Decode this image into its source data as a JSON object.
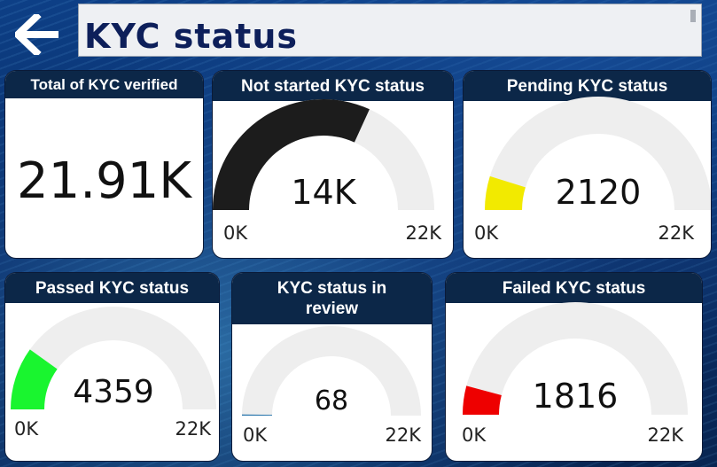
{
  "header": {
    "title": "KYC status",
    "back_icon": "arrow-left-icon"
  },
  "kpi": {
    "title": "Total of KYC verified",
    "value": "21.91K"
  },
  "gauges": [
    {
      "id": "not-started",
      "title": "Not started KYC status",
      "value": 14000,
      "value_label": "14K",
      "min_label": "0K",
      "max_label": "22K",
      "max": 22000,
      "color": "#1c1c1c"
    },
    {
      "id": "pending",
      "title": "Pending KYC status",
      "value": 2120,
      "value_label": "2120",
      "min_label": "0K",
      "max_label": "22K",
      "max": 22000,
      "color": "#f2ea00"
    },
    {
      "id": "passed",
      "title": "Passed KYC status",
      "value": 4359,
      "value_label": "4359",
      "min_label": "0K",
      "max_label": "22K",
      "max": 22000,
      "color": "#19f52f"
    },
    {
      "id": "in-review",
      "title": "KYC status in review",
      "value": 68,
      "value_label": "68",
      "min_label": "0K",
      "max_label": "22K",
      "max": 22000,
      "color": "#1f6fa8"
    },
    {
      "id": "failed",
      "title": "Failed KYC status",
      "value": 1816,
      "value_label": "1816",
      "min_label": "0K",
      "max_label": "22K",
      "max": 22000,
      "color": "#ee0000"
    }
  ]
}
